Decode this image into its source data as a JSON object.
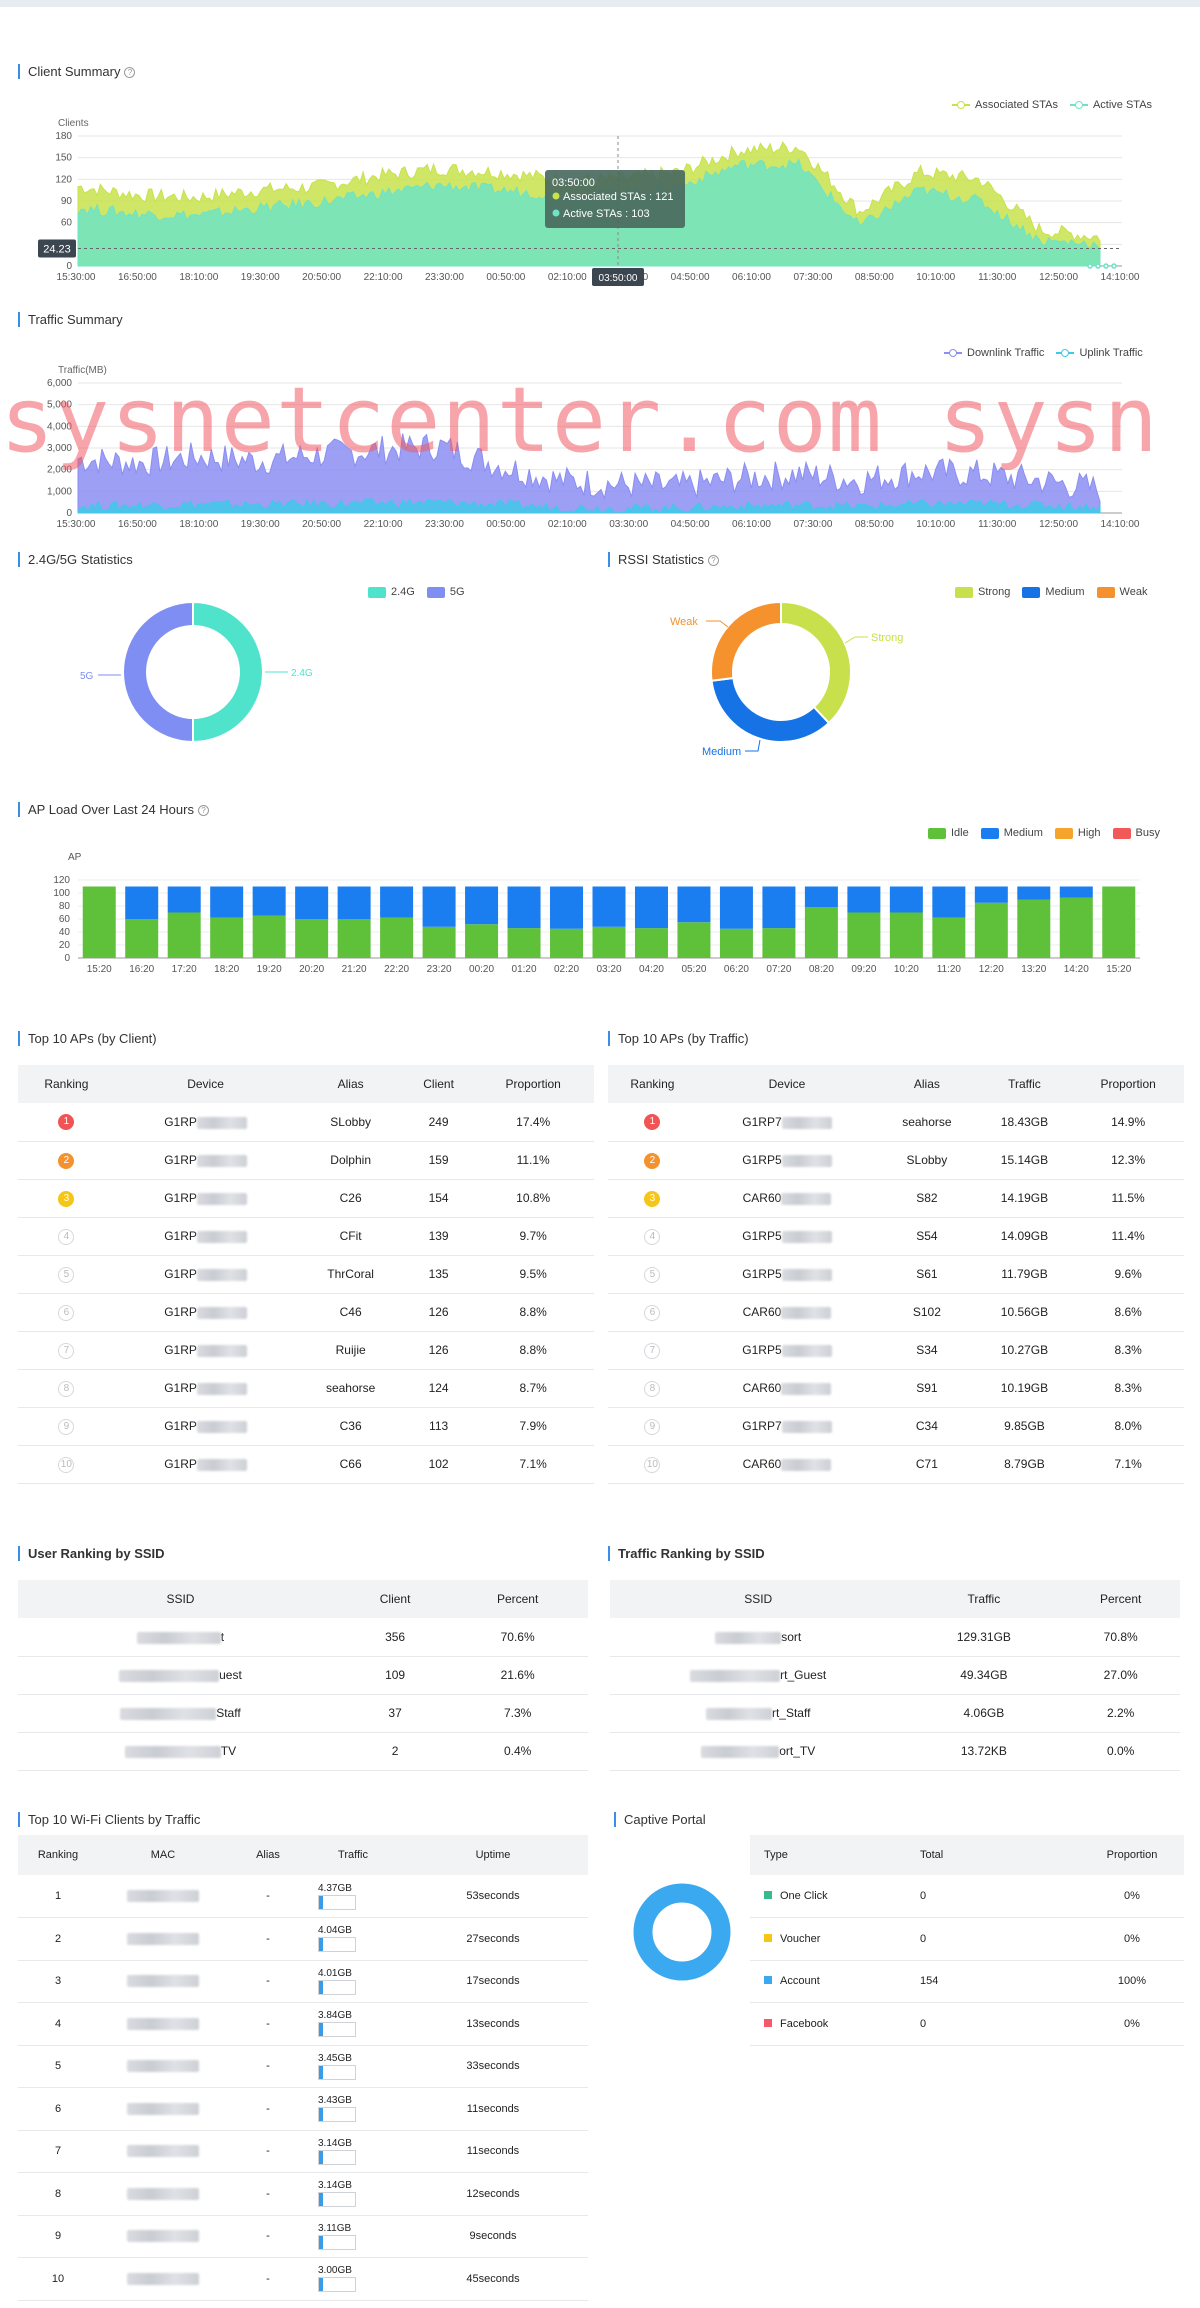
{
  "client_summary": {
    "title": "Client Summary",
    "ylabel": "Clients",
    "legend": [
      "Associated STAs",
      "Active STAs"
    ],
    "y_ticks": [
      "180",
      "150",
      "120",
      "90",
      "60",
      "30",
      "0"
    ],
    "x_ticks": [
      "15:30:00",
      "16:50:00",
      "18:10:00",
      "19:30:00",
      "20:50:00",
      "22:10:00",
      "23:30:00",
      "00:50:00",
      "02:10:00",
      "03:50:00",
      "04:50:00",
      "06:10:00",
      "07:30:00",
      "08:50:00",
      "10:10:00",
      "11:30:00",
      "12:50:00",
      "14:10:00"
    ],
    "cursor_value": "24.23",
    "tooltip": {
      "time": "03:50:00",
      "assoc": "Associated STAs : 121",
      "active": "Active STAs : 103"
    },
    "colors": {
      "assoc": "#c8e24b",
      "active": "#6fe3c4"
    }
  },
  "traffic_summary": {
    "title": "Traffic Summary",
    "ylabel": "Traffic(MB)",
    "legend": [
      "Downlink Traffic",
      "Uplink Traffic"
    ],
    "y_ticks": [
      "6,000",
      "5,000",
      "4,000",
      "3,000",
      "2,000",
      "1,000",
      "0"
    ],
    "x_ticks": [
      "15:30:00",
      "16:50:00",
      "18:10:00",
      "19:30:00",
      "20:50:00",
      "22:10:00",
      "23:30:00",
      "00:50:00",
      "02:10:00",
      "03:30:00",
      "04:50:00",
      "06:10:00",
      "07:30:00",
      "08:50:00",
      "10:10:00",
      "11:30:00",
      "12:50:00",
      "14:10:00"
    ],
    "colors": {
      "down": "#8b8ef2",
      "up": "#41c8e8"
    }
  },
  "watermark": "sysnetcenter.com   sysn",
  "band_stats": {
    "title": "2.4G/5G Statistics",
    "legend": [
      "2.4G",
      "5G"
    ],
    "labels": {
      "a": "2.4G",
      "b": "5G"
    },
    "colors": {
      "a": "#4fe3cc",
      "b": "#7f8ef2"
    }
  },
  "rssi_stats": {
    "title": "RSSI Statistics",
    "legend": [
      "Strong",
      "Medium",
      "Weak"
    ],
    "labels": {
      "strong": "Strong",
      "medium": "Medium",
      "weak": "Weak"
    },
    "colors": {
      "strong": "#c7e04b",
      "medium": "#1673e6",
      "weak": "#f5922e"
    }
  },
  "ap_load": {
    "title": "AP Load Over Last 24 Hours",
    "ylabel": "AP",
    "legend": [
      "Idle",
      "Medium",
      "High",
      "Busy"
    ],
    "legend_colors": [
      "#5fc13a",
      "#1a7ef0",
      "#f5a52b",
      "#f25a5a"
    ],
    "y_ticks": [
      "120",
      "100",
      "80",
      "60",
      "40",
      "20",
      "0"
    ]
  },
  "chart_data": [
    {
      "type": "area",
      "title": "Client Summary",
      "ylabel": "Clients",
      "ylim": [
        0,
        180
      ],
      "x": [
        "15:30:00",
        "16:50:00",
        "18:10:00",
        "19:30:00",
        "20:50:00",
        "22:10:00",
        "23:30:00",
        "00:50:00",
        "02:10:00",
        "03:50:00",
        "04:50:00",
        "06:10:00",
        "07:30:00",
        "08:50:00",
        "10:10:00",
        "11:30:00",
        "12:50:00",
        "14:10:00"
      ],
      "series": [
        {
          "name": "Associated STAs",
          "values": [
            110,
            98,
            95,
            105,
            110,
            125,
            135,
            130,
            120,
            121,
            130,
            160,
            165,
            75,
            130,
            120,
            50,
            40
          ]
        },
        {
          "name": "Active STAs",
          "values": [
            80,
            72,
            70,
            80,
            88,
            100,
            112,
            105,
            98,
            103,
            110,
            140,
            140,
            55,
            105,
            90,
            35,
            30
          ]
        }
      ]
    },
    {
      "type": "area",
      "title": "Traffic Summary",
      "ylabel": "Traffic(MB)",
      "ylim": [
        0,
        6000
      ],
      "x": [
        "15:30:00",
        "16:50:00",
        "18:10:00",
        "19:30:00",
        "20:50:00",
        "22:10:00",
        "23:30:00",
        "00:50:00",
        "02:10:00",
        "03:30:00",
        "04:50:00",
        "06:10:00",
        "07:30:00",
        "08:50:00",
        "10:10:00",
        "11:30:00",
        "12:50:00",
        "14:10:00"
      ],
      "series": [
        {
          "name": "Downlink Traffic",
          "values": [
            2500,
            2300,
            2600,
            2400,
            2700,
            2900,
            3100,
            2200,
            1500,
            1300,
            1200,
            1600,
            1800,
            1500,
            1900,
            1800,
            1500,
            1100
          ]
        },
        {
          "name": "Uplink Traffic",
          "values": [
            300,
            350,
            400,
            380,
            420,
            450,
            480,
            380,
            250,
            200,
            220,
            300,
            350,
            280,
            400,
            420,
            350,
            250
          ]
        }
      ]
    },
    {
      "type": "pie",
      "title": "2.4G/5G Statistics",
      "categories": [
        "2.4G",
        "5G"
      ],
      "values": [
        50,
        50
      ]
    },
    {
      "type": "pie",
      "title": "RSSI Statistics",
      "categories": [
        "Strong",
        "Medium",
        "Weak"
      ],
      "values": [
        38,
        35,
        27
      ]
    },
    {
      "type": "bar",
      "title": "AP Load Over Last 24 Hours",
      "ylabel": "AP",
      "ylim": [
        0,
        120
      ],
      "categories": [
        "15:20",
        "16:20",
        "17:20",
        "18:20",
        "19:20",
        "20:20",
        "21:20",
        "22:20",
        "23:20",
        "00:20",
        "01:20",
        "02:20",
        "03:20",
        "04:20",
        "05:20",
        "06:20",
        "07:20",
        "08:20",
        "09:20",
        "10:20",
        "11:20",
        "12:20",
        "13:20",
        "14:20",
        "15:20"
      ],
      "series": [
        {
          "name": "Idle",
          "values": [
            110,
            60,
            70,
            62,
            65,
            60,
            60,
            62,
            48,
            52,
            46,
            45,
            48,
            46,
            55,
            45,
            46,
            78,
            70,
            70,
            62,
            85,
            90,
            93,
            110
          ]
        },
        {
          "name": "Medium",
          "values": [
            0,
            50,
            40,
            48,
            45,
            50,
            50,
            48,
            62,
            58,
            64,
            65,
            62,
            64,
            55,
            65,
            64,
            32,
            40,
            40,
            48,
            25,
            20,
            17,
            0
          ]
        },
        {
          "name": "High",
          "values": [
            0,
            0,
            0,
            0,
            0,
            0,
            0,
            0,
            0,
            0,
            0,
            0,
            0,
            0,
            0,
            0,
            0,
            0,
            0,
            0,
            0,
            0,
            0,
            0,
            0
          ]
        },
        {
          "name": "Busy",
          "values": [
            0,
            0,
            0,
            0,
            0,
            0,
            0,
            0,
            0,
            0,
            0,
            0,
            0,
            0,
            0,
            0,
            0,
            0,
            0,
            0,
            0,
            0,
            0,
            0,
            0
          ]
        }
      ]
    }
  ],
  "top_ap_client": {
    "title": "Top 10 APs (by Client)",
    "headers": [
      "Ranking",
      "Device",
      "Alias",
      "Client",
      "Proportion"
    ],
    "rows": [
      {
        "rank": "1",
        "device": "G1RP",
        "alias": "SLobby",
        "value": "249",
        "prop": "17.4%"
      },
      {
        "rank": "2",
        "device": "G1RP",
        "alias": "Dolphin",
        "value": "159",
        "prop": "11.1%"
      },
      {
        "rank": "3",
        "device": "G1RP",
        "alias": "C26",
        "value": "154",
        "prop": "10.8%"
      },
      {
        "rank": "4",
        "device": "G1RP",
        "alias": "CFit",
        "value": "139",
        "prop": "9.7%"
      },
      {
        "rank": "5",
        "device": "G1RP",
        "alias": "ThrCoral",
        "value": "135",
        "prop": "9.5%"
      },
      {
        "rank": "6",
        "device": "G1RP",
        "alias": "C46",
        "value": "126",
        "prop": "8.8%"
      },
      {
        "rank": "7",
        "device": "G1RP",
        "alias": "Ruijie",
        "value": "126",
        "prop": "8.8%"
      },
      {
        "rank": "8",
        "device": "G1RP",
        "alias": "seahorse",
        "value": "124",
        "prop": "8.7%"
      },
      {
        "rank": "9",
        "device": "G1RP",
        "alias": "C36",
        "value": "113",
        "prop": "7.9%"
      },
      {
        "rank": "10",
        "device": "G1RP",
        "alias": "C66",
        "value": "102",
        "prop": "7.1%"
      }
    ]
  },
  "top_ap_traffic": {
    "title": "Top 10 APs (by Traffic)",
    "headers": [
      "Ranking",
      "Device",
      "Alias",
      "Traffic",
      "Proportion"
    ],
    "rows": [
      {
        "rank": "1",
        "device": "G1RP7",
        "alias": "seahorse",
        "value": "18.43GB",
        "prop": "14.9%"
      },
      {
        "rank": "2",
        "device": "G1RP5",
        "alias": "SLobby",
        "value": "15.14GB",
        "prop": "12.3%"
      },
      {
        "rank": "3",
        "device": "CAR60",
        "alias": "S82",
        "value": "14.19GB",
        "prop": "11.5%"
      },
      {
        "rank": "4",
        "device": "G1RP5",
        "alias": "S54",
        "value": "14.09GB",
        "prop": "11.4%"
      },
      {
        "rank": "5",
        "device": "G1RP5",
        "alias": "S61",
        "value": "11.79GB",
        "prop": "9.6%"
      },
      {
        "rank": "6",
        "device": "CAR60",
        "alias": "S102",
        "value": "10.56GB",
        "prop": "8.6%"
      },
      {
        "rank": "7",
        "device": "G1RP5",
        "alias": "S34",
        "value": "10.27GB",
        "prop": "8.3%"
      },
      {
        "rank": "8",
        "device": "CAR60",
        "alias": "S91",
        "value": "10.19GB",
        "prop": "8.3%"
      },
      {
        "rank": "9",
        "device": "G1RP7",
        "alias": "C34",
        "value": "9.85GB",
        "prop": "8.0%"
      },
      {
        "rank": "10",
        "device": "CAR60",
        "alias": "C71",
        "value": "8.79GB",
        "prop": "7.1%"
      }
    ]
  },
  "user_ssid": {
    "title": "User Ranking by SSID",
    "headers": [
      "SSID",
      "Client",
      "Percent"
    ],
    "rows": [
      {
        "ssid": "t",
        "value": "356",
        "pct": "70.6%"
      },
      {
        "ssid": "uest",
        "value": "109",
        "pct": "21.6%"
      },
      {
        "ssid": "Staff",
        "value": "37",
        "pct": "7.3%"
      },
      {
        "ssid": "TV",
        "value": "2",
        "pct": "0.4%"
      }
    ]
  },
  "traffic_ssid": {
    "title": "Traffic Ranking by SSID",
    "headers": [
      "SSID",
      "Traffic",
      "Percent"
    ],
    "rows": [
      {
        "ssid": "sort",
        "value": "129.31GB",
        "pct": "70.8%"
      },
      {
        "ssid": "rt_Guest",
        "value": "49.34GB",
        "pct": "27.0%"
      },
      {
        "ssid": "rt_Staff",
        "value": "4.06GB",
        "pct": "2.2%"
      },
      {
        "ssid": "ort_TV",
        "value": "13.72KB",
        "pct": "0.0%"
      }
    ]
  },
  "top_clients": {
    "title": "Top 10 Wi-Fi Clients by Traffic",
    "headers": [
      "Ranking",
      "MAC",
      "Alias",
      "Traffic",
      "Uptime"
    ],
    "rows": [
      {
        "rank": "1",
        "alias": "-",
        "traffic": "4.37GB",
        "fill": 0.1,
        "uptime": "53seconds"
      },
      {
        "rank": "2",
        "alias": "-",
        "traffic": "4.04GB",
        "fill": 0.1,
        "uptime": "27seconds"
      },
      {
        "rank": "3",
        "alias": "-",
        "traffic": "4.01GB",
        "fill": 0.1,
        "uptime": "17seconds"
      },
      {
        "rank": "4",
        "alias": "-",
        "traffic": "3.84GB",
        "fill": 0.1,
        "uptime": "13seconds"
      },
      {
        "rank": "5",
        "alias": "-",
        "traffic": "3.45GB",
        "fill": 0.1,
        "uptime": "33seconds"
      },
      {
        "rank": "6",
        "alias": "-",
        "traffic": "3.43GB",
        "fill": 0.1,
        "uptime": "11seconds"
      },
      {
        "rank": "7",
        "alias": "-",
        "traffic": "3.14GB",
        "fill": 0.1,
        "uptime": "11seconds"
      },
      {
        "rank": "8",
        "alias": "-",
        "traffic": "3.14GB",
        "fill": 0.1,
        "uptime": "12seconds"
      },
      {
        "rank": "9",
        "alias": "-",
        "traffic": "3.11GB",
        "fill": 0.1,
        "uptime": "9seconds"
      },
      {
        "rank": "10",
        "alias": "-",
        "traffic": "3.00GB",
        "fill": 0.1,
        "uptime": "45seconds"
      }
    ]
  },
  "captive_portal": {
    "title": "Captive Portal",
    "headers": [
      "Type",
      "Total",
      "Proportion"
    ],
    "rows": [
      {
        "type": "One Click",
        "total": "0",
        "prop": "0%",
        "color": "#3cb88e"
      },
      {
        "type": "Voucher",
        "total": "0",
        "prop": "0%",
        "color": "#f5c518"
      },
      {
        "type": "Account",
        "total": "154",
        "prop": "100%",
        "color": "#3aa9f0"
      },
      {
        "type": "Facebook",
        "total": "0",
        "prop": "0%",
        "color": "#f25a6a"
      }
    ],
    "ring_color": "#3aa9f0"
  }
}
